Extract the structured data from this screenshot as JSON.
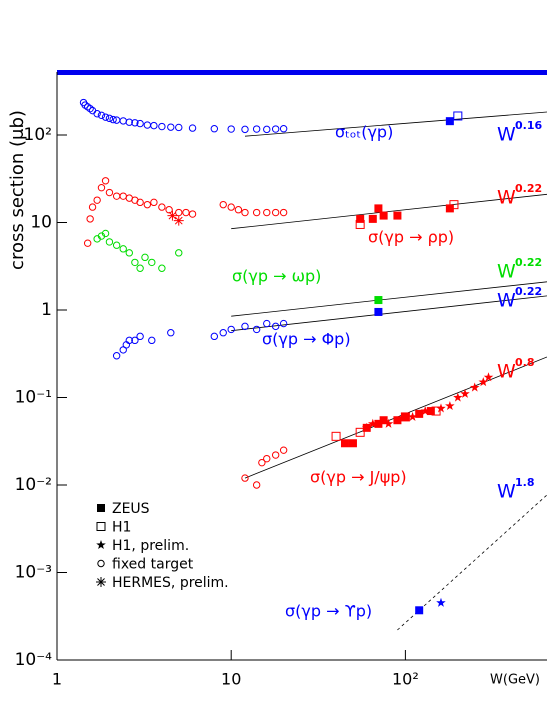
{
  "chart_data": {
    "type": "scatter",
    "xlabel": "W(GeV)",
    "ylabel": "cross section (μb)",
    "log_x": true,
    "log_y": true,
    "xlim": [
      1,
      650
    ],
    "ylim": [
      0.0001,
      525
    ],
    "xticks": [
      1,
      10,
      {
        "value": 100,
        "label": "10²"
      }
    ],
    "yticks": [
      {
        "value": 0.0001,
        "label": "10⁻⁴"
      },
      {
        "value": 0.001,
        "label": "10⁻³"
      },
      {
        "value": 0.01,
        "label": "10⁻²"
      },
      {
        "value": 0.1,
        "label": "10⁻¹"
      },
      1,
      10,
      {
        "value": 100,
        "label": "10²"
      }
    ],
    "legend": [
      {
        "name": "ZEUS",
        "marker": "filled-square"
      },
      {
        "name": "H1",
        "marker": "open-square"
      },
      {
        "name": "H1, prelim.",
        "marker": "star"
      },
      {
        "name": "fixed target",
        "marker": "open-circle"
      },
      {
        "name": "HERMES, prelim.",
        "marker": "asterisk"
      }
    ],
    "legend_color": "#000000",
    "processes": [
      {
        "label": "σₜₒₜ(γp)",
        "color": "#0000ff",
        "fit_base": "W",
        "fit_exponent": "0.16",
        "fit": {
          "x": [
            12,
            650
          ],
          "values": [
            97,
            183
          ],
          "dashed": false
        },
        "datasets": [
          {
            "marker": "open-circle",
            "x": [
              1.42,
              1.45,
              1.5,
              1.55,
              1.6,
              1.7,
              1.8,
              1.9,
              2.0,
              2.1,
              2.2,
              2.4,
              2.6,
              2.8,
              3.0,
              3.3,
              3.6,
              4.0,
              4.5,
              5.0,
              6,
              8,
              10,
              12,
              14,
              16,
              18,
              20
            ],
            "values": [
              235,
              220,
              210,
              200,
              190,
              175,
              168,
              160,
              155,
              150,
              148,
              145,
              140,
              138,
              135,
              130,
              128,
              125,
              123,
              122,
              120,
              118,
              117,
              116,
              117,
              116,
              117,
              118
            ]
          },
          {
            "marker": "filled-square",
            "x": [
              180
            ],
            "values": [
              144
            ]
          },
          {
            "marker": "open-square",
            "x": [
              200
            ],
            "values": [
              165
            ]
          }
        ]
      },
      {
        "label": "σ(γp → ρp)",
        "color": "#ff0000",
        "fit_base": "W",
        "fit_exponent": "0.22",
        "fit": {
          "x": [
            10,
            650
          ],
          "values": [
            8.5,
            21
          ],
          "dashed": false
        },
        "datasets": [
          {
            "marker": "open-circle",
            "x": [
              1.5,
              1.55,
              1.6,
              1.7,
              1.8,
              1.9,
              2.0,
              2.2,
              2.4,
              2.6,
              2.8,
              3.0,
              3.3,
              3.6,
              4.0,
              4.4,
              5.0,
              5.5,
              6,
              9,
              10,
              11,
              12,
              14,
              16,
              18,
              20
            ],
            "values": [
              5.8,
              11,
              15,
              18,
              25,
              30,
              22,
              20,
              20,
              19,
              18,
              17,
              16,
              17,
              15,
              14,
              13,
              13,
              12.5,
              16,
              15,
              14,
              13,
              13,
              13,
              13,
              13
            ]
          },
          {
            "marker": "asterisk",
            "x": [
              4.6,
              5.0
            ],
            "values": [
              12,
              10.5
            ]
          },
          {
            "marker": "filled-square",
            "x": [
              55,
              65,
              70,
              75,
              90,
              180
            ],
            "values": [
              11,
              11,
              14.5,
              12,
              12,
              14.5
            ]
          },
          {
            "marker": "open-square",
            "x": [
              55,
              190
            ],
            "values": [
              9.5,
              16
            ]
          }
        ]
      },
      {
        "label": "σ(γp → ωp)",
        "color": "#00dd00",
        "fit_base": "W",
        "fit_exponent": "0.22",
        "fit": {
          "x": [
            10,
            650
          ],
          "values": [
            0.85,
            2.1
          ],
          "dashed": false
        },
        "datasets": [
          {
            "marker": "open-circle",
            "x": [
              1.7,
              1.8,
              1.9,
              2.0,
              2.2,
              2.4,
              2.6,
              2.8,
              3.0,
              3.2,
              3.5,
              4.0,
              5.0
            ],
            "values": [
              6.5,
              7,
              7.5,
              6,
              5.5,
              5,
              4.5,
              3.5,
              3,
              4,
              3.5,
              3,
              4.5
            ]
          },
          {
            "marker": "filled-square",
            "x": [
              70
            ],
            "values": [
              1.3
            ]
          }
        ]
      },
      {
        "label": "σ(γp → Φp)",
        "color": "#0000ff",
        "fit_base": "W",
        "fit_exponent": "0.22",
        "fit": {
          "x": [
            10,
            650
          ],
          "values": [
            0.58,
            1.45
          ],
          "dashed": false
        },
        "datasets": [
          {
            "marker": "open-circle",
            "x": [
              2.2,
              2.4,
              2.5,
              2.6,
              2.8,
              3.0,
              3.5,
              4.5,
              8,
              9,
              10,
              12,
              14,
              16,
              18,
              20
            ],
            "values": [
              0.3,
              0.35,
              0.4,
              0.45,
              0.45,
              0.5,
              0.45,
              0.55,
              0.5,
              0.55,
              0.6,
              0.65,
              0.6,
              0.7,
              0.65,
              0.7
            ]
          },
          {
            "marker": "filled-square",
            "x": [
              70
            ],
            "values": [
              0.95
            ]
          }
        ]
      },
      {
        "label": "σ(γp → J/ψp)",
        "color": "#ff0000",
        "fit_base": "W",
        "fit_exponent": "0.8",
        "fit": {
          "x": [
            12,
            650
          ],
          "values": [
            0.012,
            0.29
          ],
          "dashed": false
        },
        "datasets": [
          {
            "marker": "open-circle",
            "x": [
              12,
              14,
              15,
              16,
              18,
              20
            ],
            "values": [
              0.012,
              0.01,
              0.018,
              0.02,
              0.022,
              0.025
            ]
          },
          {
            "marker": "open-square",
            "x": [
              40,
              55,
              100,
              150
            ],
            "values": [
              0.036,
              0.04,
              0.06,
              0.07
            ]
          },
          {
            "marker": "filled-square",
            "x": [
              45,
              50,
              60,
              70,
              75,
              90,
              100,
              120,
              140
            ],
            "values": [
              0.03,
              0.03,
              0.045,
              0.05,
              0.055,
              0.055,
              0.06,
              0.065,
              0.07
            ]
          },
          {
            "marker": "star",
            "x": [
              60,
              65,
              80,
              110,
              130,
              160,
              180,
              200,
              220,
              250,
              280,
              300
            ],
            "values": [
              0.045,
              0.05,
              0.05,
              0.06,
              0.07,
              0.075,
              0.08,
              0.1,
              0.11,
              0.13,
              0.15,
              0.17
            ]
          }
        ]
      },
      {
        "label": "σ(γp → ϒp)",
        "color": "#0000ff",
        "fit_base": "W",
        "fit_exponent": "1.8",
        "fit": {
          "x": [
            90,
            650
          ],
          "values": [
            0.00022,
            0.0077
          ],
          "dashed": true
        },
        "datasets": [
          {
            "marker": "filled-square",
            "x": [
              120
            ],
            "values": [
              0.00037
            ]
          },
          {
            "marker": "star",
            "x": [
              160
            ],
            "values": [
              0.00045
            ]
          }
        ]
      }
    ]
  }
}
